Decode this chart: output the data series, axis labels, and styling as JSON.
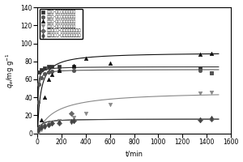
{
  "xlabel": "t/min",
  "ylabel": "$q_e$/mg g$^{-1}$",
  "xlim": [
    0,
    1600
  ],
  "ylim": [
    0,
    140
  ],
  "xticks": [
    0,
    200,
    400,
    600,
    800,
    1000,
    1200,
    1400,
    1600
  ],
  "yticks": [
    0,
    20,
    40,
    60,
    80,
    100,
    120,
    140
  ],
  "series": [
    {
      "label": "乙二辟-孔聚糖还原气凝胶",
      "marker": "s",
      "color": "#333333",
      "qe": 74.0,
      "k2": 0.004,
      "scatter_t": [
        5,
        10,
        30,
        60,
        90,
        120,
        180,
        300,
        1350,
        1440
      ],
      "scatter_q": [
        55,
        68,
        71,
        73,
        74,
        74,
        74,
        74,
        73,
        67
      ]
    },
    {
      "label": "乙二辟-孔聚糖还原水凝胶",
      "marker": "o",
      "color": "#555555",
      "qe": 71.0,
      "k2": 0.003,
      "scatter_t": [
        5,
        10,
        30,
        60,
        90,
        120,
        180,
        300,
        1350,
        1440
      ],
      "scatter_q": [
        35,
        55,
        62,
        66,
        68,
        69,
        70,
        70,
        70,
        67
      ]
    },
    {
      "label": "戊二辟-孔聚糖还原气凝胶",
      "marker": "^",
      "color": "#111111",
      "qe": 90.0,
      "k2": 0.0004,
      "scatter_t": [
        5,
        10,
        30,
        60,
        90,
        120,
        180,
        300,
        400,
        600,
        1350,
        1440
      ],
      "scatter_q": [
        5,
        8,
        15,
        40,
        60,
        65,
        70,
        75,
        83,
        78,
        88,
        89
      ]
    },
    {
      "label": "戊二辟-孔聚糖还原水凝胶",
      "marker": "v",
      "color": "#888888",
      "qe": 47.0,
      "k2": 0.00015,
      "scatter_t": [
        5,
        10,
        30,
        60,
        90,
        120,
        180,
        300,
        400,
        600,
        1350,
        1440
      ],
      "scatter_q": [
        1,
        2,
        4,
        7,
        10,
        12,
        14,
        18,
        22,
        32,
        45,
        46
      ]
    },
    {
      "label": "对苯二甲辟-孔聚糖还原气凝胶",
      "marker": "D",
      "color": "#666666",
      "qe": 16.0,
      "k2": 0.003,
      "scatter_t": [
        5,
        10,
        30,
        60,
        90,
        120,
        180,
        280,
        300,
        1350,
        1440
      ],
      "scatter_q": [
        4,
        6,
        8,
        9,
        10,
        11,
        11,
        22,
        14,
        15,
        16
      ]
    },
    {
      "label": "对苯二甲辟-孔聚糖还原水凝胶",
      "marker": "d",
      "color": "#444444",
      "qe": 16.0,
      "k2": 0.003,
      "scatter_t": [
        5,
        10,
        30,
        60,
        90,
        120,
        180,
        280,
        300,
        1350,
        1440
      ],
      "scatter_q": [
        3,
        5,
        7,
        8,
        10,
        11,
        12,
        13,
        14,
        15,
        17
      ]
    }
  ],
  "figsize": [
    3.0,
    2.0
  ],
  "dpi": 100
}
